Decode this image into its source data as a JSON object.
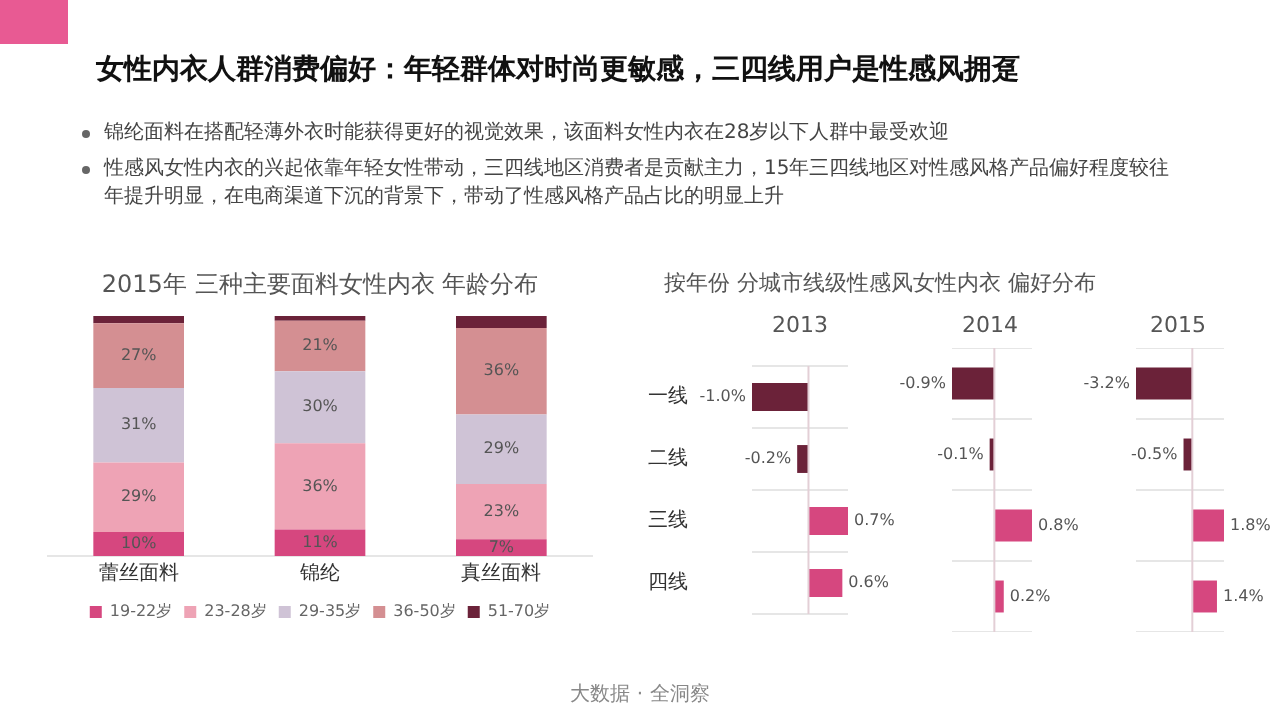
{
  "chart_data": [
    {
      "type": "bar",
      "stacked": true,
      "title": "2015年 三种主要面料女性内衣 年龄分布",
      "categories": [
        "蕾丝面料",
        "锦纶",
        "真丝面料"
      ],
      "legend": "bottom",
      "series": [
        {
          "name": "19-22岁",
          "color": "#d6477f",
          "values": [
            10,
            11,
            7
          ],
          "value_labels": [
            "10%",
            "11%",
            "7%"
          ]
        },
        {
          "name": "23-28岁",
          "color": "#eea3b5",
          "values": [
            29,
            36,
            23
          ],
          "value_labels": [
            "29%",
            "36%",
            "23%"
          ]
        },
        {
          "name": "29-35岁",
          "color": "#cfc3d6",
          "values": [
            31,
            30,
            29
          ],
          "value_labels": [
            "31%",
            "30%",
            "29%"
          ]
        },
        {
          "name": "36-50岁",
          "color": "#d48f92",
          "values": [
            27,
            21,
            36
          ],
          "value_labels": [
            "27%",
            "21%",
            "36%"
          ]
        },
        {
          "name": "51-70岁",
          "color": "#6b2239",
          "values": [
            3,
            2,
            5
          ],
          "value_labels": [
            null,
            null,
            null
          ]
        }
      ],
      "annotations": [
        "女性内衣人群消费偏好：年轻群体对时尚更敏感，三四线用户是性感风拥趸",
        "锦纶面料在搭配轻薄外衣时能获得更好的视觉效果，该面料女性内衣在28岁以下人群中最受欢迎",
        "性感风女性内衣的兴起依靠年轻女性带动，三四线地区消费者是贡献主力，15年三四线地区对性感风格产品偏好程度较往年提升明显，在电商渠道下沉的背景下，带动了性感风格产品占比的明显上升",
        "大数据 · 全洞察"
      ]
    },
    {
      "type": "bar",
      "orientation": "horizontal",
      "title": "按年份 分城市线级性感风女性内衣 偏好分布",
      "subtitle": "2013",
      "categories": [
        "一线",
        "二线",
        "三线",
        "四线"
      ],
      "values": [
        -1.0,
        -0.2,
        0.7,
        0.6
      ],
      "colors": [
        "#6b2239",
        "#6b2239",
        "#d6477f",
        "#d6477f"
      ],
      "value_labels": [
        "-1.0%",
        "-0.2%",
        "0.7%",
        "0.6%"
      ],
      "tick_labels": "y",
      "grid": "y",
      "ref_lines": [
        {
          "axis": "x",
          "value": 0
        }
      ]
    },
    {
      "type": "bar",
      "orientation": "horizontal",
      "title": "2014",
      "categories": [
        null,
        null,
        null,
        null
      ],
      "values": [
        -0.9,
        -0.1,
        0.8,
        0.2
      ],
      "colors": [
        "#6b2239",
        "#6b2239",
        "#d6477f",
        "#d6477f"
      ],
      "value_labels": [
        "-0.9%",
        "-0.1%",
        "0.8%",
        "0.2%"
      ],
      "tick_labels": false,
      "grid": "y",
      "ref_lines": [
        {
          "axis": "x",
          "value": 0
        }
      ]
    },
    {
      "type": "bar",
      "orientation": "horizontal",
      "title": "2015",
      "categories": [
        null,
        null,
        null,
        null
      ],
      "values": [
        -3.2,
        -0.5,
        1.8,
        1.4
      ],
      "colors": [
        "#6b2239",
        "#6b2239",
        "#d6477f",
        "#d6477f"
      ],
      "value_labels": [
        "-3.2%",
        "-0.5%",
        "1.8%",
        "1.4%"
      ],
      "tick_labels": false,
      "grid": "y",
      "ref_lines": [
        {
          "axis": "x",
          "value": 0
        }
      ]
    }
  ]
}
